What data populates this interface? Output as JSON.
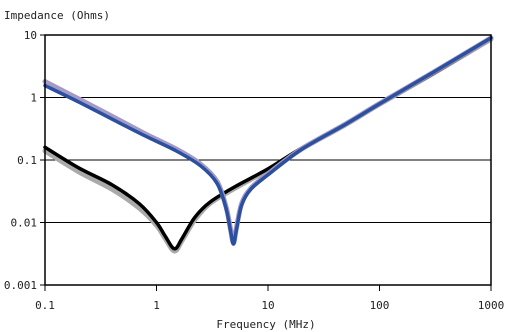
{
  "chart_data": {
    "type": "line",
    "title": "",
    "xlabel": "Frequency (MHz)",
    "ylabel": "Impedance (Ohms)",
    "x_scale": "log",
    "y_scale": "log",
    "xlim": [
      0.1,
      1000
    ],
    "ylim": [
      0.001,
      10
    ],
    "grid": {
      "horizontal": true,
      "vertical": false
    },
    "x_ticks": [
      0.1,
      1,
      10,
      100,
      1000
    ],
    "x_tick_labels": [
      "0.1",
      "1",
      "10",
      "100",
      "1000"
    ],
    "y_ticks": [
      0.001,
      0.01,
      0.1,
      1,
      10
    ],
    "y_tick_labels": [
      "0.001",
      "0.01",
      "0.1",
      "1",
      "10"
    ],
    "legend": "none",
    "series": [
      {
        "color": "#aaaaaa",
        "stroke_width": 5,
        "points": [
          [
            0.1,
            0.14
          ],
          [
            0.2,
            0.065
          ],
          [
            0.4,
            0.034
          ],
          [
            0.7,
            0.017
          ],
          [
            1.0,
            0.009
          ],
          [
            1.2,
            0.0055
          ],
          [
            1.45,
            0.0035
          ],
          [
            1.7,
            0.0052
          ],
          [
            2.2,
            0.011
          ],
          [
            3.0,
            0.02
          ],
          [
            5.0,
            0.035
          ],
          [
            10,
            0.07
          ],
          [
            20,
            0.15
          ],
          [
            50,
            0.37
          ],
          [
            100,
            0.78
          ],
          [
            300,
            2.4
          ],
          [
            1000,
            8.6
          ]
        ]
      },
      {
        "color": "#000000",
        "stroke_width": 3.5,
        "points": [
          [
            0.1,
            0.16
          ],
          [
            0.2,
            0.075
          ],
          [
            0.4,
            0.04
          ],
          [
            0.7,
            0.02
          ],
          [
            1.0,
            0.01
          ],
          [
            1.2,
            0.006
          ],
          [
            1.45,
            0.0038
          ],
          [
            1.7,
            0.0056
          ],
          [
            2.2,
            0.012
          ],
          [
            3.0,
            0.021
          ],
          [
            5.0,
            0.037
          ],
          [
            10,
            0.072
          ],
          [
            20,
            0.155
          ],
          [
            50,
            0.38
          ],
          [
            100,
            0.79
          ],
          [
            300,
            2.4
          ],
          [
            1000,
            8.8
          ]
        ]
      },
      {
        "color": "#a49ac6",
        "stroke_width": 5,
        "points": [
          [
            0.1,
            1.8
          ],
          [
            0.2,
            0.95
          ],
          [
            0.4,
            0.5
          ],
          [
            0.8,
            0.26
          ],
          [
            1.5,
            0.15
          ],
          [
            2.5,
            0.085
          ],
          [
            3.5,
            0.045
          ],
          [
            4.2,
            0.018
          ],
          [
            4.6,
            0.008
          ],
          [
            4.9,
            0.0047
          ],
          [
            5.2,
            0.008
          ],
          [
            5.8,
            0.02
          ],
          [
            7.0,
            0.035
          ],
          [
            10,
            0.06
          ],
          [
            20,
            0.15
          ],
          [
            50,
            0.38
          ],
          [
            100,
            0.8
          ],
          [
            300,
            2.5
          ],
          [
            1000,
            9.0
          ]
        ]
      },
      {
        "color": "#2b50a0",
        "stroke_width": 3.5,
        "points": [
          [
            0.1,
            1.55
          ],
          [
            0.2,
            0.85
          ],
          [
            0.4,
            0.45
          ],
          [
            0.8,
            0.24
          ],
          [
            1.5,
            0.14
          ],
          [
            2.5,
            0.08
          ],
          [
            3.5,
            0.042
          ],
          [
            4.2,
            0.017
          ],
          [
            4.6,
            0.0075
          ],
          [
            4.9,
            0.0045
          ],
          [
            5.2,
            0.0075
          ],
          [
            5.8,
            0.019
          ],
          [
            7.0,
            0.034
          ],
          [
            10,
            0.058
          ],
          [
            20,
            0.148
          ],
          [
            50,
            0.375
          ],
          [
            100,
            0.79
          ],
          [
            300,
            2.5
          ],
          [
            1000,
            9.0
          ]
        ]
      }
    ]
  }
}
